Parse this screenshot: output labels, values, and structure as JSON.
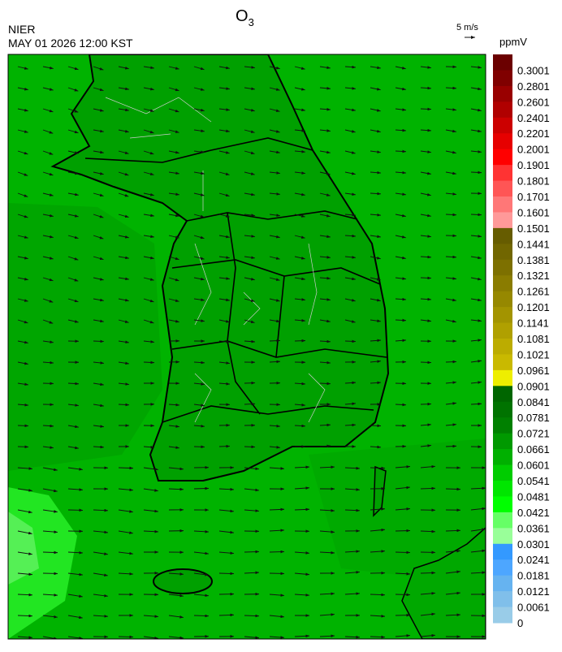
{
  "header": {
    "agency": "NIER",
    "datetime": "MAY 01 2026 12:00 KST",
    "title": {
      "base": "O",
      "subscript": "3"
    }
  },
  "wind_scale": {
    "label": "5 m/s"
  },
  "colorbar": {
    "unit": "ppmV",
    "labels": [
      0.3001,
      0.2801,
      0.2601,
      0.2401,
      0.2201,
      0.2001,
      0.1901,
      0.1801,
      0.1701,
      0.1601,
      0.1501,
      0.1441,
      0.1381,
      0.1321,
      0.1261,
      0.1201,
      0.1141,
      0.1081,
      0.1021,
      0.0961,
      0.0901,
      0.0841,
      0.0781,
      0.0721,
      0.0661,
      0.0601,
      0.0541,
      0.0481,
      0.0421,
      0.0361,
      0.0301,
      0.0241,
      0.0181,
      0.0121,
      0.0061,
      0
    ],
    "colors": [
      "#6b0000",
      "#800000",
      "#990000",
      "#b00000",
      "#cc0000",
      "#e60000",
      "#ff0000",
      "#ff3333",
      "#ff5555",
      "#ff7777",
      "#ff9999",
      "#665c00",
      "#716600",
      "#7d7000",
      "#8a7c00",
      "#968800",
      "#a39400",
      "#b0a000",
      "#bcac00",
      "#c9b900",
      "#eeee00",
      "#006600",
      "#007300",
      "#008000",
      "#009900",
      "#00b000",
      "#00cc00",
      "#00e600",
      "#00ff00",
      "#66ff66",
      "#99ff99",
      "#3399ff",
      "#4da6ff",
      "#66b3f0",
      "#80bfea",
      "#99cce8"
    ]
  }
}
